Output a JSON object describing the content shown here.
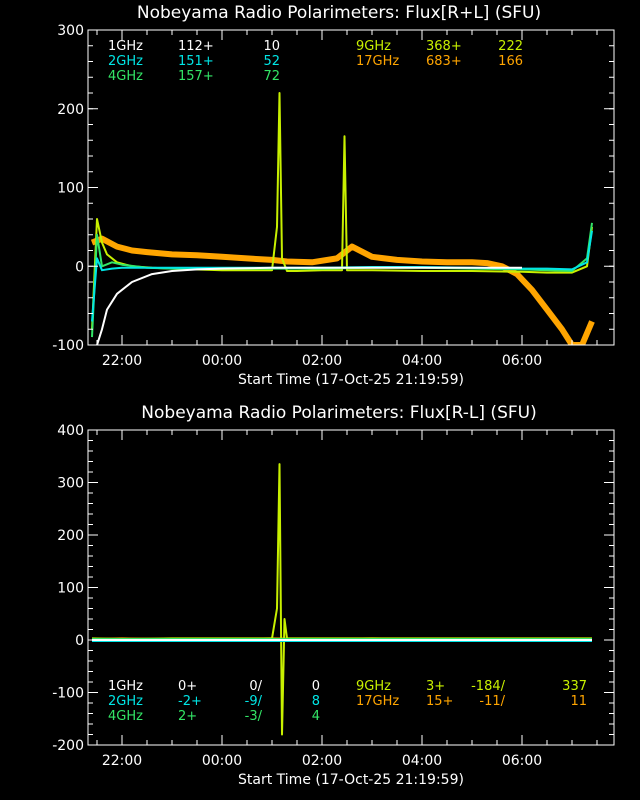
{
  "chart_data": [
    {
      "type": "line",
      "title": "Nobeyama Radio Polarimeters: Flux[R+L] (SFU)",
      "xlabel": "Start Time (17-Oct-25 21:19:59)",
      "ylabel": "",
      "ylim": [
        -100,
        300
      ],
      "yticks": [
        -100,
        0,
        100,
        200,
        300
      ],
      "xticks": [
        "22:00",
        "00:00",
        "02:00",
        "04:00",
        "06:00"
      ],
      "legend": [
        {
          "band": "1GHz",
          "color": "#ffffff",
          "a": "112+",
          "b": "10"
        },
        {
          "band": "2GHz",
          "color": "#00e5e5",
          "a": "151+",
          "b": "52"
        },
        {
          "band": "4GHz",
          "color": "#33e566",
          "a": "157+",
          "b": "72"
        },
        {
          "band": "9GHz",
          "color": "#c8f000",
          "a": "368+",
          "b": "222"
        },
        {
          "band": "17GHz",
          "color": "#ffa500",
          "a": "683+",
          "b": "166"
        }
      ],
      "series": [
        {
          "name": "17GHz",
          "color": "#ffa500",
          "x": [
            21.4,
            21.6,
            21.9,
            22.2,
            22.5,
            23.0,
            23.5,
            24.0,
            24.5,
            25.0,
            25.3,
            25.8,
            26.3,
            26.6,
            27.0,
            27.5,
            28.0,
            28.5,
            29.0,
            29.3,
            29.6,
            29.9,
            30.2,
            30.5,
            30.8,
            31.0,
            31.2,
            31.4
          ],
          "y": [
            30,
            35,
            25,
            20,
            18,
            15,
            14,
            12,
            10,
            8,
            6,
            5,
            10,
            25,
            12,
            8,
            6,
            5,
            5,
            4,
            0,
            -10,
            -30,
            -55,
            -80,
            -100,
            -100,
            -70
          ]
        },
        {
          "name": "9GHz",
          "color": "#c8f000",
          "x": [
            21.4,
            21.5,
            21.6,
            21.7,
            21.9,
            22.2,
            22.6,
            23.0,
            24.0,
            24.8,
            25.0,
            25.1,
            25.15,
            25.2,
            25.3,
            25.5,
            26.0,
            26.4,
            26.45,
            26.5,
            27.0,
            28.0,
            29.0,
            30.0,
            30.5,
            31.0,
            31.3,
            31.4
          ],
          "y": [
            -80,
            60,
            30,
            15,
            5,
            0,
            -2,
            -3,
            -5,
            -5,
            -5,
            50,
            220,
            10,
            -6,
            -6,
            -5,
            -5,
            165,
            -5,
            -5,
            -6,
            -6,
            -7,
            -8,
            -8,
            0,
            50
          ]
        },
        {
          "name": "4GHz",
          "color": "#33e566",
          "x": [
            21.4,
            21.5,
            21.6,
            21.8,
            22.0,
            22.5,
            23.0,
            24.0,
            25.0,
            26.0,
            27.0,
            28.0,
            29.0,
            30.0,
            30.5,
            31.0,
            31.3,
            31.4
          ],
          "y": [
            -90,
            40,
            0,
            5,
            2,
            -2,
            -3,
            -3,
            -3,
            -3,
            -2,
            -2,
            -3,
            -4,
            -5,
            -6,
            10,
            55
          ]
        },
        {
          "name": "2GHz",
          "color": "#00e5e5",
          "x": [
            21.4,
            21.5,
            21.6,
            21.8,
            22.0,
            22.5,
            23.0,
            24.0,
            25.0,
            26.0,
            27.0,
            28.0,
            29.0,
            30.0,
            30.5,
            31.0,
            31.3,
            31.4
          ],
          "y": [
            -70,
            10,
            -5,
            -3,
            -2,
            -2,
            -2,
            -2,
            -2,
            -2,
            -1,
            -1,
            -2,
            -3,
            -3,
            -4,
            5,
            45
          ]
        },
        {
          "name": "1GHz",
          "color": "#ffffff",
          "x": [
            21.5,
            21.6,
            21.7,
            21.9,
            22.2,
            22.6,
            23.0,
            23.5,
            24.0,
            25.0,
            26.0,
            27.0,
            28.0,
            29.0,
            30.0
          ],
          "y": [
            -100,
            -80,
            -55,
            -35,
            -20,
            -10,
            -6,
            -4,
            -3,
            -2,
            -2,
            -2,
            -2,
            -2,
            -2
          ]
        }
      ]
    },
    {
      "type": "line",
      "title": "Nobeyama Radio Polarimeters: Flux[R-L] (SFU)",
      "xlabel": "Start Time (17-Oct-25 21:19:59)",
      "ylabel": "",
      "ylim": [
        -200,
        400
      ],
      "yticks": [
        -200,
        -100,
        0,
        100,
        200,
        300,
        400
      ],
      "xticks": [
        "22:00",
        "00:00",
        "02:00",
        "04:00",
        "06:00"
      ],
      "legend": [
        {
          "band": "1GHz",
          "color": "#ffffff",
          "a": "0+",
          "b": "0/",
          "c": "0"
        },
        {
          "band": "2GHz",
          "color": "#00e5e5",
          "a": "-2+",
          "b": "-9/",
          "c": "8"
        },
        {
          "band": "4GHz",
          "color": "#33e566",
          "a": "2+",
          "b": "-3/",
          "c": "4"
        },
        {
          "band": "9GHz",
          "color": "#c8f000",
          "a": "3+",
          "b": "-184/",
          "c": "337"
        },
        {
          "band": "17GHz",
          "color": "#ffa500",
          "a": "15+",
          "b": "-11/",
          "c": "11"
        }
      ],
      "series": [
        {
          "name": "17GHz",
          "color": "#ffa500",
          "x": [
            21.4,
            22.0,
            23.0,
            24.0,
            25.0,
            26.0,
            27.0,
            28.0,
            29.0,
            30.0,
            31.0,
            31.4
          ],
          "y": [
            2,
            3,
            2,
            2,
            3,
            2,
            3,
            2,
            2,
            2,
            1,
            2
          ]
        },
        {
          "name": "9GHz",
          "color": "#c8f000",
          "x": [
            21.4,
            22.0,
            23.0,
            24.0,
            25.0,
            25.1,
            25.15,
            25.2,
            25.25,
            25.3,
            26.0,
            27.0,
            28.0,
            29.0,
            30.0,
            31.0,
            31.4
          ],
          "y": [
            3,
            2,
            3,
            3,
            3,
            60,
            335,
            -180,
            40,
            3,
            3,
            3,
            3,
            3,
            3,
            3,
            3
          ]
        },
        {
          "name": "4GHz",
          "color": "#33e566",
          "x": [
            21.4,
            23.0,
            25.0,
            27.0,
            29.0,
            31.4
          ],
          "y": [
            2,
            2,
            2,
            2,
            2,
            2
          ]
        },
        {
          "name": "2GHz",
          "color": "#00e5e5",
          "x": [
            21.4,
            23.0,
            25.0,
            27.0,
            29.0,
            31.0,
            31.4
          ],
          "y": [
            -2,
            -2,
            -2,
            -2,
            -2,
            -2,
            -2
          ]
        },
        {
          "name": "1GHz",
          "color": "#ffffff",
          "x": [
            21.4,
            23.0,
            25.0,
            27.0,
            29.0,
            31.4
          ],
          "y": [
            0,
            0,
            0,
            0,
            0,
            0
          ]
        }
      ]
    }
  ]
}
